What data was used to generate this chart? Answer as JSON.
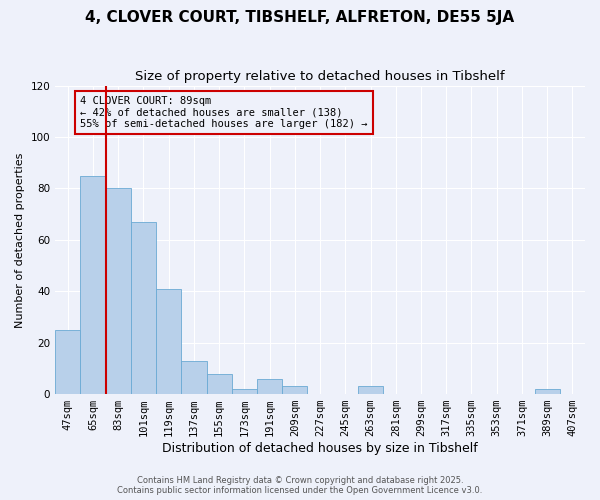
{
  "title": "4, CLOVER COURT, TIBSHELF, ALFRETON, DE55 5JA",
  "subtitle": "Size of property relative to detached houses in Tibshelf",
  "xlabel": "Distribution of detached houses by size in Tibshelf",
  "ylabel": "Number of detached properties",
  "bar_values": [
    25,
    85,
    80,
    67,
    41,
    13,
    8,
    2,
    6,
    3,
    0,
    0,
    3,
    0,
    0,
    0,
    0,
    0,
    0,
    2,
    0
  ],
  "bar_labels": [
    "47sqm",
    "65sqm",
    "83sqm",
    "101sqm",
    "119sqm",
    "137sqm",
    "155sqm",
    "173sqm",
    "191sqm",
    "209sqm",
    "227sqm",
    "245sqm",
    "263sqm",
    "281sqm",
    "299sqm",
    "317sqm",
    "335sqm",
    "353sqm",
    "371sqm",
    "389sqm",
    "407sqm"
  ],
  "bar_color": "#b8d0ea",
  "bar_edge_color": "#6aaad4",
  "vline_x_index": 2,
  "vline_color": "#cc0000",
  "ylim": [
    0,
    120
  ],
  "yticks": [
    0,
    20,
    40,
    60,
    80,
    100,
    120
  ],
  "annotation_title": "4 CLOVER COURT: 89sqm",
  "annotation_line1": "← 42% of detached houses are smaller (138)",
  "annotation_line2": "55% of semi-detached houses are larger (182) →",
  "annotation_box_color": "#cc0000",
  "footer1": "Contains HM Land Registry data © Crown copyright and database right 2025.",
  "footer2": "Contains public sector information licensed under the Open Government Licence v3.0.",
  "bg_color": "#eef1fa",
  "grid_color": "#ffffff",
  "title_fontsize": 11,
  "subtitle_fontsize": 9.5,
  "xlabel_fontsize": 9,
  "ylabel_fontsize": 8,
  "tick_fontsize": 7.5,
  "footer_fontsize": 6,
  "annotation_fontsize": 7.5
}
